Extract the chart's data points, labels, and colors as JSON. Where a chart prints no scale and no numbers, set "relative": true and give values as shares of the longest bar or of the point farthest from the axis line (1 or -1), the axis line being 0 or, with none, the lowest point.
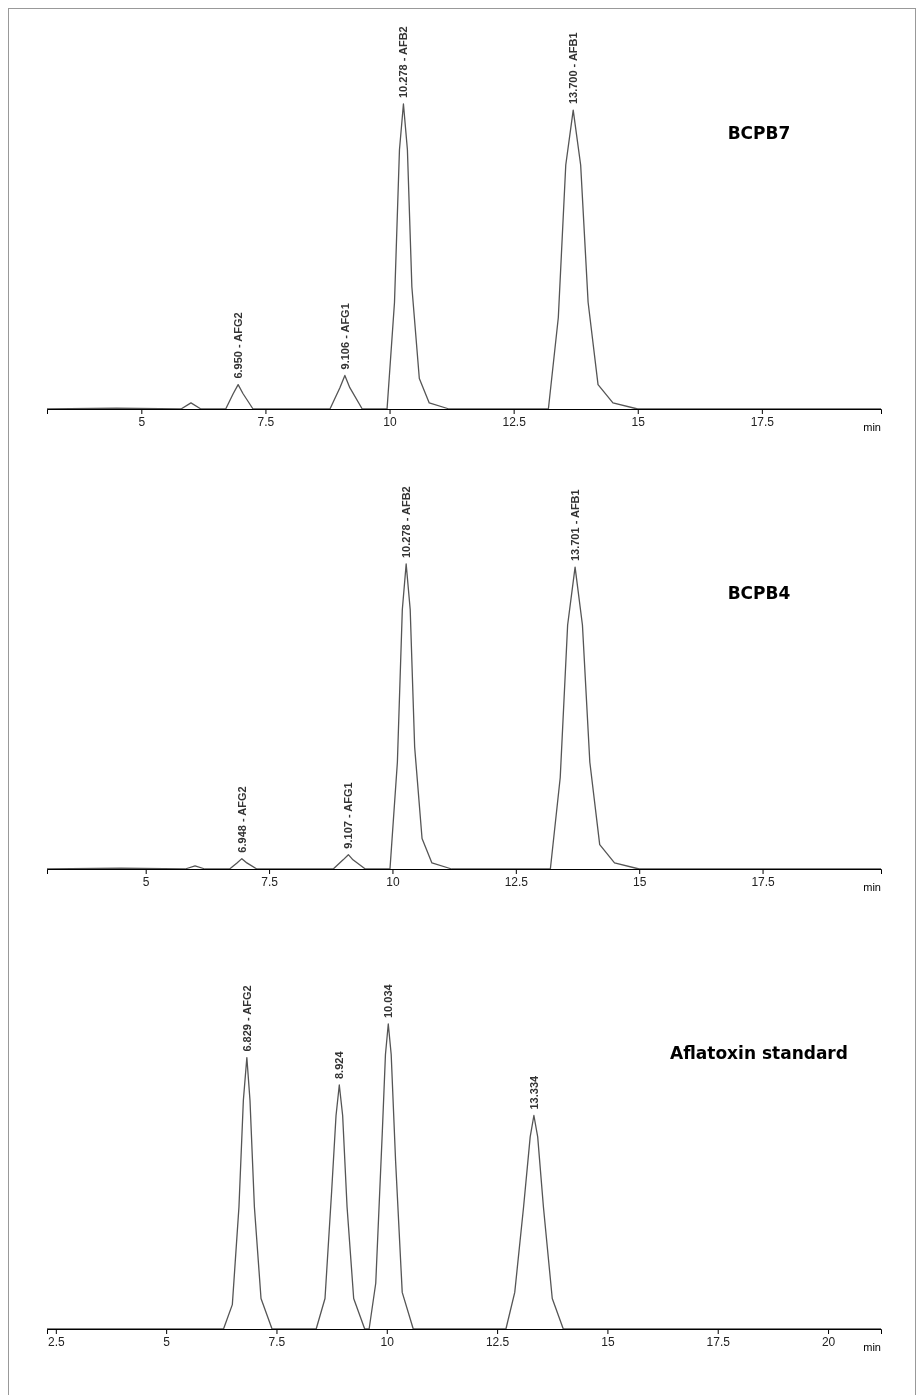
{
  "chart_data": [
    {
      "type": "line",
      "title": "BCPB7",
      "xlabel": "min",
      "relative": true,
      "xlim": [
        3.1,
        19.9
      ],
      "xticks": [
        5,
        7.5,
        10,
        12.5,
        15,
        17.5
      ],
      "x": [
        3.1,
        4.5,
        5.8,
        6.0,
        6.2,
        6.7,
        6.85,
        6.95,
        7.05,
        7.25,
        8.8,
        9.0,
        9.1,
        9.2,
        9.45,
        9.95,
        10.1,
        10.2,
        10.28,
        10.36,
        10.45,
        10.6,
        10.8,
        11.2,
        13.2,
        13.4,
        13.55,
        13.7,
        13.85,
        14.0,
        14.2,
        14.5,
        15,
        19.9
      ],
      "series": [
        {
          "color": "#555555",
          "values": [
            0,
            0.003,
            0,
            0.02,
            0,
            0,
            0.05,
            0.08,
            0.05,
            0,
            0,
            0.07,
            0.11,
            0.07,
            0,
            0,
            0.35,
            0.85,
            1.0,
            0.85,
            0.4,
            0.1,
            0.02,
            0,
            0,
            0.3,
            0.8,
            0.98,
            0.8,
            0.35,
            0.08,
            0.02,
            0,
            0
          ]
        }
      ],
      "annotations": [
        {
          "text": "6.950 - AFG2",
          "x": 6.95,
          "y": 0.08
        },
        {
          "text": "9.106 - AFG1",
          "x": 9.106,
          "y": 0.11
        },
        {
          "text": "10.278 - AFB2",
          "x": 10.278,
          "y": 1.0
        },
        {
          "text": "13.700 - AFB1",
          "x": 13.7,
          "y": 0.98
        }
      ]
    },
    {
      "type": "line",
      "title": "BCPB4",
      "xlabel": "min",
      "relative": true,
      "xlim": [
        3.0,
        19.9
      ],
      "xticks": [
        5,
        7.5,
        10,
        12.5,
        15,
        17.5
      ],
      "x": [
        3.0,
        4.5,
        5.8,
        6.0,
        6.2,
        6.7,
        6.85,
        6.948,
        7.05,
        7.25,
        8.8,
        9.0,
        9.107,
        9.2,
        9.45,
        9.95,
        10.1,
        10.2,
        10.278,
        10.36,
        10.45,
        10.6,
        10.8,
        11.2,
        13.2,
        13.4,
        13.55,
        13.701,
        13.85,
        14.0,
        14.2,
        14.5,
        15,
        19.9
      ],
      "series": [
        {
          "color": "#555555",
          "values": [
            0,
            0.003,
            0,
            0.01,
            0,
            0,
            0.02,
            0.034,
            0.02,
            0,
            0,
            0.03,
            0.047,
            0.03,
            0,
            0,
            0.35,
            0.85,
            1.0,
            0.85,
            0.4,
            0.1,
            0.02,
            0,
            0,
            0.3,
            0.8,
            0.99,
            0.8,
            0.35,
            0.08,
            0.02,
            0,
            0
          ]
        }
      ],
      "annotations": [
        {
          "text": "6.948 - AFG2",
          "x": 6.948,
          "y": 0.034
        },
        {
          "text": "9.107 - AFG1",
          "x": 9.107,
          "y": 0.047
        },
        {
          "text": "10.278 - AFB2",
          "x": 10.278,
          "y": 1.0
        },
        {
          "text": "13.701 - AFB1",
          "x": 13.701,
          "y": 0.99
        }
      ]
    },
    {
      "type": "line",
      "title": "Aflatoxin standard",
      "xlabel": "min",
      "relative": true,
      "xlim": [
        2.3,
        21.2
      ],
      "xticks": [
        2.5,
        5,
        7.5,
        10,
        12.5,
        15,
        17.5,
        20
      ],
      "x": [
        2.3,
        6.3,
        6.5,
        6.65,
        6.75,
        6.829,
        6.9,
        7.0,
        7.15,
        7.4,
        8.4,
        8.6,
        8.75,
        8.85,
        8.924,
        9.0,
        9.1,
        9.25,
        9.5,
        9.6,
        9.75,
        9.9,
        9.97,
        10.034,
        10.1,
        10.2,
        10.35,
        10.6,
        12.7,
        12.9,
        13.1,
        13.25,
        13.334,
        13.42,
        13.55,
        13.75,
        14.0,
        21.2
      ],
      "series": [
        {
          "color": "#555555",
          "values": [
            0,
            0,
            0.08,
            0.4,
            0.75,
            0.89,
            0.75,
            0.4,
            0.1,
            0,
            0,
            0.1,
            0.45,
            0.7,
            0.8,
            0.7,
            0.4,
            0.1,
            0,
            0,
            0.15,
            0.65,
            0.9,
            1.0,
            0.9,
            0.55,
            0.12,
            0,
            0,
            0.12,
            0.4,
            0.63,
            0.7,
            0.63,
            0.4,
            0.1,
            0,
            0
          ]
        }
      ],
      "annotations": [
        {
          "text": "6.829 - AFG2",
          "x": 6.829,
          "y": 0.89
        },
        {
          "text": "8.924",
          "x": 8.924,
          "y": 0.8
        },
        {
          "text": "10.034",
          "x": 10.034,
          "y": 1.0
        },
        {
          "text": "13.334",
          "x": 13.334,
          "y": 0.7
        }
      ]
    }
  ]
}
